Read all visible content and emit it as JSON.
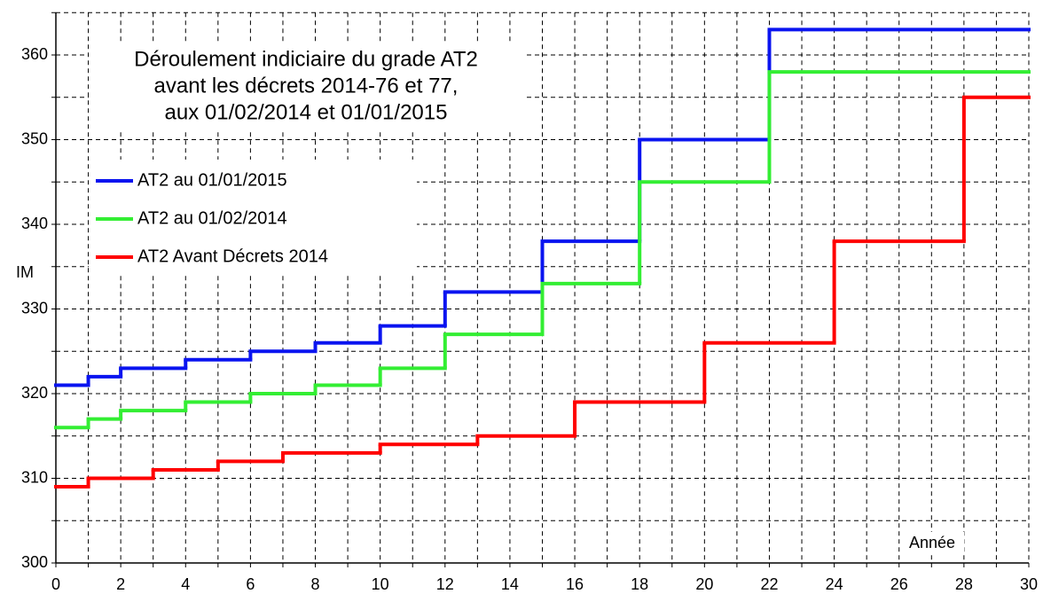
{
  "chart_data": {
    "type": "step",
    "title": [
      "Déroulement indiciaire du grade AT2",
      "avant les décrets 2014-76 et 77,",
      "aux 01/02/2014 et 01/01/2015"
    ],
    "x_label": "Année",
    "y_label": "IM",
    "xlim": [
      0,
      30
    ],
    "xticks": [
      0,
      2,
      4,
      6,
      8,
      10,
      12,
      14,
      16,
      18,
      20,
      22,
      24,
      26,
      28,
      30
    ],
    "xminorticks": [
      1,
      3,
      5,
      7,
      9,
      11,
      13,
      15,
      17,
      19,
      21,
      23,
      25,
      27,
      29
    ],
    "ylim": [
      300,
      365
    ],
    "yticks": [
      300,
      310,
      320,
      330,
      340,
      350,
      360
    ],
    "yminorticks": [
      305,
      315,
      325,
      335,
      345,
      355,
      365
    ],
    "grid": true,
    "series": [
      {
        "name": "AT2 au 01/01/2015",
        "color": "#0a14f0",
        "x": [
          0,
          1,
          2,
          4,
          6,
          8,
          10,
          12,
          15,
          18,
          22
        ],
        "values": [
          321,
          322,
          323,
          324,
          325,
          326,
          328,
          332,
          338,
          350,
          363
        ]
      },
      {
        "name": "AT2 au 01/02/2014",
        "color": "#33ee33",
        "x": [
          0,
          1,
          2,
          4,
          6,
          8,
          10,
          12,
          15,
          18,
          22
        ],
        "values": [
          316,
          317,
          318,
          319,
          320,
          321,
          323,
          327,
          333,
          345,
          358
        ]
      },
      {
        "name": "AT2 Avant Décrets 2014",
        "color": "#ff0000",
        "x": [
          0,
          1,
          3,
          5,
          7,
          10,
          13,
          16,
          20,
          24,
          28
        ],
        "values": [
          309,
          310,
          311,
          312,
          313,
          314,
          315,
          319,
          326,
          338,
          355
        ]
      }
    ]
  }
}
